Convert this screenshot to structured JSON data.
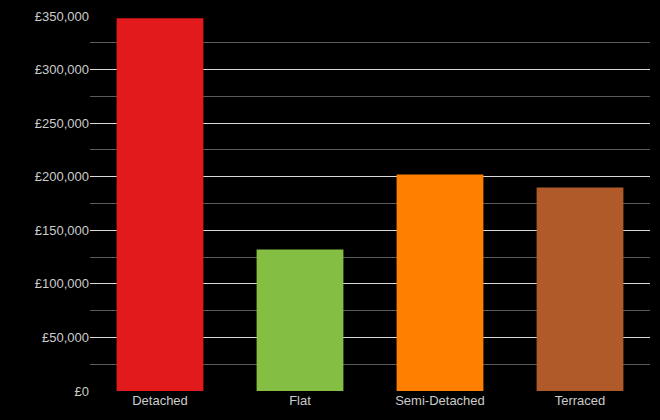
{
  "chart_data": {
    "type": "bar",
    "categories": [
      "Detached",
      "Flat",
      "Semi-Detached",
      "Terraced"
    ],
    "values": [
      348000,
      132000,
      202000,
      190000
    ],
    "colors": [
      "#e31a1c",
      "#84bf44",
      "#ff8000",
      "#b05a2a"
    ],
    "ylim": [
      0,
      350000
    ],
    "yticks": [
      {
        "value": 0,
        "label": "£0"
      },
      {
        "value": 50000,
        "label": "£50,000"
      },
      {
        "value": 100000,
        "label": "£100,000"
      },
      {
        "value": 150000,
        "label": "£150,000"
      },
      {
        "value": 200000,
        "label": "£200,000"
      },
      {
        "value": 250000,
        "label": "£250,000"
      },
      {
        "value": 300000,
        "label": "£300,000"
      },
      {
        "value": 350000,
        "label": "£350,000"
      }
    ],
    "grid": true
  }
}
